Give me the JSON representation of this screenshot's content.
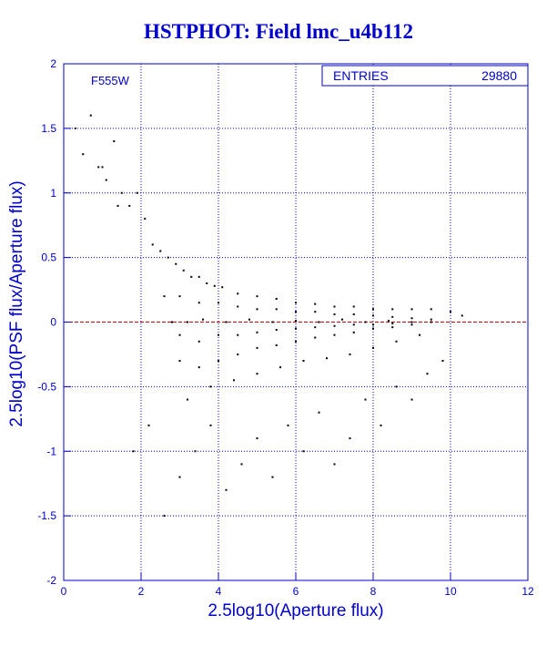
{
  "title": "HSTPHOT: Field lmc_u4b112",
  "filter_label": "F555W",
  "stats_box": {
    "label": "ENTRIES",
    "value": "29880"
  },
  "colors": {
    "axis": "#0000cc",
    "grid": "#0000cc",
    "points": "#000000",
    "zero_line": "#cc0000"
  },
  "chart_data": {
    "type": "scatter",
    "title": "HSTPHOT: Field lmc_u4b112",
    "xlabel": "2.5log10(Aperture flux)",
    "ylabel": "2.5log10(PSF flux/Aperture flux)",
    "xlim": [
      0,
      12
    ],
    "ylim": [
      -2,
      2
    ],
    "xticks": [
      0,
      2,
      4,
      6,
      8,
      10,
      12
    ],
    "yticks": [
      -2,
      -1.5,
      -1,
      -0.5,
      0,
      0.5,
      1,
      1.5,
      2
    ],
    "ytick_labels": [
      "-2",
      "-1.5",
      "-1",
      "-0.5",
      "0",
      "0.5",
      "1",
      "1.5",
      "2"
    ],
    "grid": true,
    "reference_line_y": 0,
    "entries": 29880,
    "series": [
      {
        "x": [
          0.3,
          0.5,
          0.7,
          0.9,
          1.1,
          1.3,
          1.5,
          1.7,
          1.9,
          2.1,
          2.3,
          2.5,
          2.7,
          2.9,
          3.1,
          3.3,
          3.5,
          3.7,
          3.9,
          4.1,
          4.5,
          5.0,
          5.5,
          6.0,
          6.5,
          7.0,
          7.5,
          8.0,
          8.5,
          9.0,
          9.5,
          10.0,
          10.3,
          2.6,
          3.0,
          3.5,
          4.0,
          4.5,
          5.0,
          5.5,
          6.0,
          6.5,
          7.0,
          7.5,
          8.0,
          8.5,
          9.0,
          9.5,
          2.8,
          3.2,
          3.6,
          4.2,
          4.8,
          5.4,
          6.0,
          6.6,
          7.2,
          7.8,
          8.4,
          9.0,
          3.0,
          3.5,
          4.0,
          4.5,
          5.0,
          5.5,
          6.0,
          6.5,
          7.0,
          7.5,
          8.0,
          8.5,
          9.0,
          9.5,
          3.0,
          3.5,
          4.0,
          4.5,
          5.0,
          5.5,
          6.0,
          6.5,
          7.0,
          7.5,
          8.0,
          8.5,
          9.0,
          3.2,
          3.8,
          4.4,
          5.0,
          5.6,
          6.2,
          6.8,
          7.4,
          8.0,
          8.6,
          9.2,
          1.0,
          1.4,
          1.8,
          2.2,
          2.6,
          3.0,
          3.4,
          3.8,
          4.2,
          4.6,
          5.0,
          5.4,
          5.8,
          6.2,
          6.6,
          7.0,
          7.4,
          7.8,
          8.2,
          8.6,
          9.0,
          9.4,
          9.8
        ],
        "y": [
          1.5,
          1.3,
          1.6,
          1.2,
          1.1,
          1.4,
          1.0,
          0.9,
          1.0,
          0.8,
          0.6,
          0.55,
          0.5,
          0.45,
          0.4,
          0.35,
          0.35,
          0.3,
          0.28,
          0.27,
          0.22,
          0.2,
          0.18,
          0.15,
          0.14,
          0.12,
          0.12,
          0.1,
          0.1,
          0.1,
          0.1,
          0.08,
          0.05,
          0.2,
          0.2,
          0.15,
          0.15,
          0.12,
          0.1,
          0.1,
          0.08,
          0.08,
          0.06,
          0.06,
          0.05,
          0.04,
          0.03,
          0.02,
          0.0,
          0.0,
          0.02,
          0.0,
          0.02,
          0.0,
          0.01,
          0.0,
          0.02,
          0.0,
          0.01,
          0.0,
          -0.1,
          -0.15,
          -0.1,
          -0.1,
          -0.08,
          -0.06,
          -0.05,
          -0.04,
          -0.03,
          -0.02,
          -0.02,
          -0.01,
          0.0,
          0.0,
          -0.3,
          -0.35,
          -0.3,
          -0.25,
          -0.2,
          -0.18,
          -0.15,
          -0.12,
          -0.1,
          -0.08,
          -0.05,
          -0.04,
          -0.02,
          -0.6,
          -0.5,
          -0.45,
          -0.4,
          -0.35,
          -0.3,
          -0.28,
          -0.25,
          -0.2,
          -0.15,
          -0.1,
          1.2,
          0.9,
          -1.0,
          -0.8,
          -1.5,
          -1.2,
          -1.0,
          -0.8,
          -1.3,
          -1.1,
          -0.9,
          -1.2,
          -0.8,
          -1.0,
          -0.7,
          -1.1,
          -0.9,
          -0.6,
          -0.8,
          -0.5,
          -0.6,
          -0.4,
          -0.3
        ]
      }
    ]
  }
}
